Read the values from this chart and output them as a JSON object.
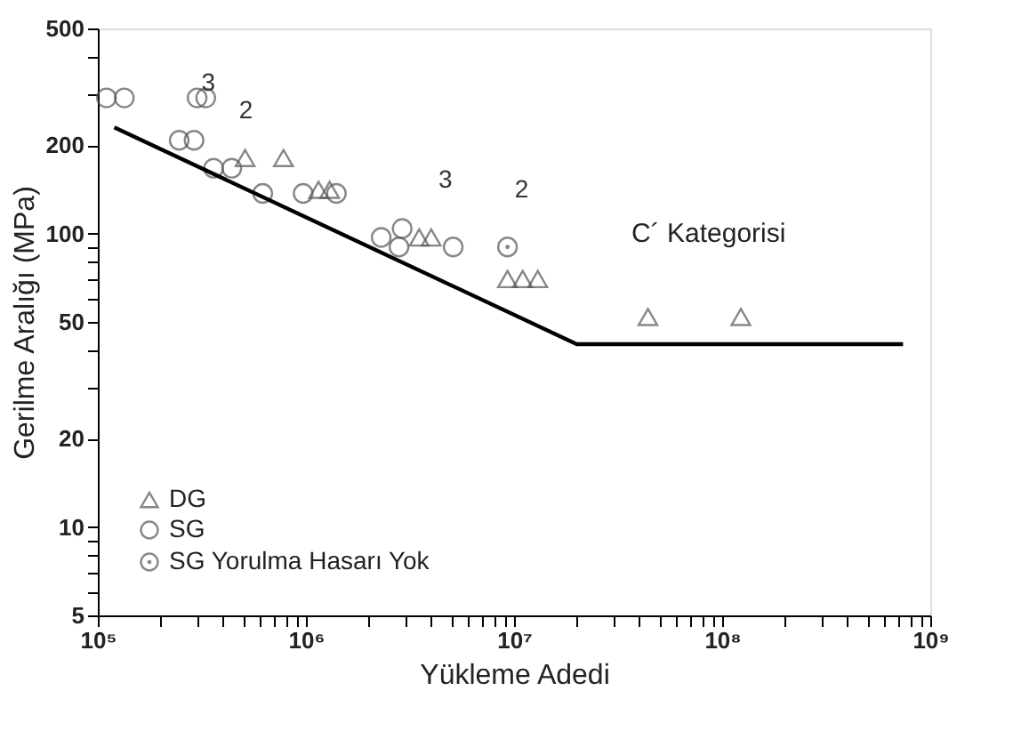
{
  "chart_data": {
    "type": "scatter",
    "xlabel": "Yükleme Adedi",
    "ylabel": "Gerilme Aralığı (MPa)",
    "log": "xy",
    "grid": false,
    "legend": "bottom left",
    "xlim": [
      100000,
      1000000000
    ],
    "xticks": [
      {
        "value": 100000,
        "label": "10⁵"
      },
      {
        "value": 1000000,
        "label": "10⁶"
      },
      {
        "value": 10000000,
        "label": "10⁷"
      },
      {
        "value": 100000000,
        "label": "10⁸"
      },
      {
        "value": 1000000000,
        "label": "10⁹"
      },
      {
        "value": 200000,
        "label": null
      },
      {
        "value": 300000,
        "label": null
      },
      {
        "value": 400000,
        "label": null
      },
      {
        "value": 500000,
        "label": null
      },
      {
        "value": 600000,
        "label": null
      },
      {
        "value": 700000,
        "label": null
      },
      {
        "value": 800000,
        "label": null
      },
      {
        "value": 900000,
        "label": null
      },
      {
        "value": 2000000,
        "label": null
      },
      {
        "value": 3000000,
        "label": null
      },
      {
        "value": 4000000,
        "label": null
      },
      {
        "value": 5000000,
        "label": null
      },
      {
        "value": 6000000,
        "label": null
      },
      {
        "value": 7000000,
        "label": null
      },
      {
        "value": 8000000,
        "label": null
      },
      {
        "value": 9000000,
        "label": null
      },
      {
        "value": 20000000,
        "label": null
      },
      {
        "value": 30000000,
        "label": null
      },
      {
        "value": 40000000,
        "label": null
      },
      {
        "value": 50000000,
        "label": null
      },
      {
        "value": 60000000,
        "label": null
      },
      {
        "value": 70000000,
        "label": null
      },
      {
        "value": 80000000,
        "label": null
      },
      {
        "value": 90000000,
        "label": null
      },
      {
        "value": 200000000,
        "label": null
      },
      {
        "value": 300000000,
        "label": null
      },
      {
        "value": 400000000,
        "label": null
      },
      {
        "value": 500000000,
        "label": null
      },
      {
        "value": 600000000,
        "label": null
      },
      {
        "value": 700000000,
        "label": null
      },
      {
        "value": 800000000,
        "label": null
      },
      {
        "value": 900000000,
        "label": null
      }
    ],
    "ylim": [
      5,
      500
    ],
    "yticks": [
      5,
      10,
      20,
      50,
      100,
      200,
      500,
      {
        "value": 6,
        "label": null
      },
      {
        "value": 7,
        "label": null
      },
      {
        "value": 8,
        "label": null
      },
      {
        "value": 9,
        "label": null
      },
      {
        "value": 30,
        "label": null
      },
      {
        "value": 40,
        "label": null
      },
      {
        "value": 60,
        "label": null
      },
      {
        "value": 70,
        "label": null
      },
      {
        "value": 80,
        "label": null
      },
      {
        "value": 90,
        "label": null
      },
      {
        "value": 300,
        "label": null
      },
      {
        "value": 400,
        "label": null
      }
    ],
    "series": [
      {
        "name": "DG",
        "color": "#555555",
        "marker": "triangle",
        "x": [
          510000,
          780000,
          1150000,
          1300000,
          3500000,
          4000000,
          9300000,
          11000000,
          13000000,
          44000000,
          123000000
        ],
        "values": [
          181,
          181,
          141,
          141,
          97,
          97,
          70,
          70,
          70,
          52,
          52
        ]
      },
      {
        "name": "SG",
        "color": "#555555",
        "marker": "circle",
        "x": [
          110000,
          134000,
          300000,
          330000,
          246000,
          290000,
          360000,
          440000,
          620000,
          970000,
          1400000,
          2300000,
          2900000,
          2800000,
          5100000
        ],
        "values": [
          290,
          290,
          290,
          290,
          208,
          208,
          167,
          167,
          137,
          137,
          137,
          97,
          104,
          90,
          90
        ]
      },
      {
        "name": "SG Yorulma Hasarı Yok",
        "color": "#555555",
        "marker": "dotted circle",
        "x": [
          9300000
        ],
        "values": [
          90
        ]
      },
      {
        "type": "line",
        "color": "#000000",
        "marker": "none",
        "x": [
          120000,
          20000000,
          740000000
        ],
        "values": [
          230,
          42,
          42
        ]
      }
    ],
    "annotations": [
      {
        "text": "3",
        "x": 290000,
        "y": 208
      },
      {
        "text": "2",
        "x": 440000,
        "y": 167
      },
      {
        "text": "3",
        "x": 4000000,
        "y": 97
      },
      {
        "text": "2",
        "x": 9300000,
        "y": 90
      },
      "C´ Kategorisi"
    ]
  }
}
